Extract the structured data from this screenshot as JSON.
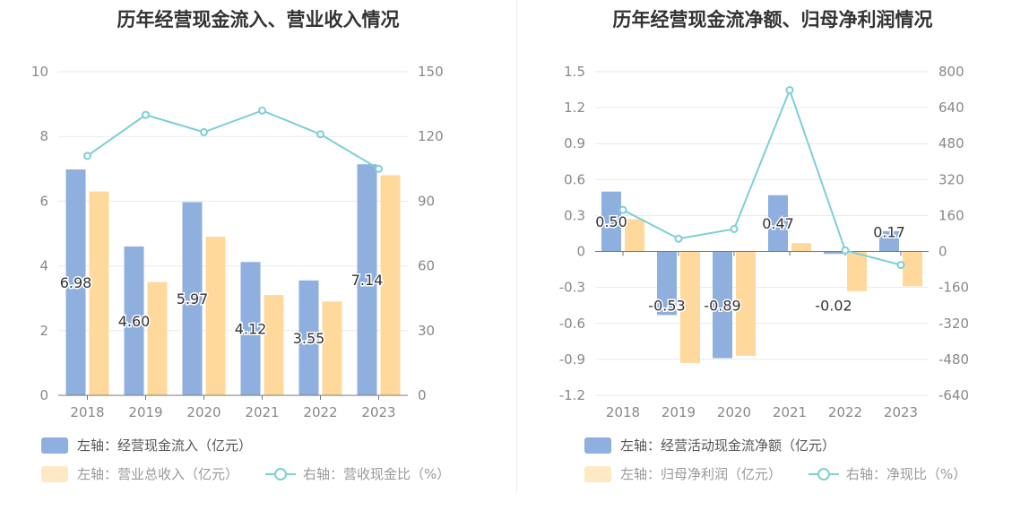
{
  "colors": {
    "bar_blue": "#8fafde",
    "bar_orange": "#ffd89c",
    "line_teal": "#7ecfd6",
    "grid": "#e6e9f2",
    "axis": "#777777",
    "tick_text": "#888888",
    "title": "#333333"
  },
  "legend_icons": [
    "blue-bar-swatch",
    "orange-bar-swatch",
    "teal-line-circle-marker"
  ],
  "chart_data": [
    {
      "type": "bar",
      "title": "历年经营现金流入、营业收入情况",
      "categories": [
        "2018",
        "2019",
        "2020",
        "2021",
        "2022",
        "2023"
      ],
      "y_left": {
        "ylim": [
          0,
          10
        ],
        "ticks": [
          "0",
          "2",
          "4",
          "6",
          "8",
          "10"
        ],
        "tick_values": [
          0,
          2,
          4,
          6,
          8,
          10
        ]
      },
      "y_right": {
        "ylim": [
          0,
          150
        ],
        "ticks": [
          "0",
          "30",
          "60",
          "90",
          "120",
          "150"
        ],
        "tick_values": [
          0,
          30,
          60,
          90,
          120,
          150
        ]
      },
      "grid": true,
      "legend_position": "bottom-left",
      "series": [
        {
          "name": "左轴：经营现金流入（亿元）",
          "kind": "bar",
          "axis": "left",
          "color": "#8fafde",
          "values": [
            6.98,
            4.6,
            5.97,
            4.12,
            3.55,
            7.14
          ],
          "labels": [
            "6.98",
            "4.60",
            "5.97",
            "4.12",
            "3.55",
            "7.14"
          ]
        },
        {
          "name": "左轴：营业总收入（亿元）",
          "kind": "bar",
          "axis": "left",
          "color": "#ffd89c",
          "values": [
            6.3,
            3.5,
            4.9,
            3.1,
            2.9,
            6.8
          ]
        },
        {
          "name": "右轴：营收现金比（%）",
          "kind": "line",
          "axis": "right",
          "color": "#7ecfd6",
          "values": [
            111,
            130,
            122,
            132,
            121,
            105
          ]
        }
      ]
    },
    {
      "type": "bar",
      "title": "历年经营现金流净额、归母净利润情况",
      "categories": [
        "2018",
        "2019",
        "2020",
        "2021",
        "2022",
        "2023"
      ],
      "y_left": {
        "ylim": [
          -1.2,
          1.5
        ],
        "ticks": [
          "-1.2",
          "-0.9",
          "-0.6",
          "-0.3",
          "0",
          "0.3",
          "0.6",
          "0.9",
          "1.2",
          "1.5"
        ],
        "tick_values": [
          -1.2,
          -0.9,
          -0.6,
          -0.3,
          0,
          0.3,
          0.6,
          0.9,
          1.2,
          1.5
        ]
      },
      "y_right": {
        "ylim": [
          -640,
          800
        ],
        "ticks": [
          "-640",
          "-480",
          "-320",
          "-160",
          "0",
          "160",
          "320",
          "480",
          "640",
          "800"
        ],
        "tick_values": [
          -640,
          -480,
          -320,
          -160,
          0,
          160,
          320,
          480,
          640,
          800
        ]
      },
      "grid": true,
      "legend_position": "bottom-left",
      "series": [
        {
          "name": "左轴：经营活动现金流净额（亿元）",
          "kind": "bar",
          "axis": "left",
          "color": "#8fafde",
          "values": [
            0.5,
            -0.53,
            -0.89,
            0.47,
            -0.02,
            0.17
          ],
          "labels": [
            "0.50",
            "-0.53",
            "-0.89",
            "0.47",
            "-0.02",
            "0.17"
          ]
        },
        {
          "name": "左轴：归母净利润（亿元）",
          "kind": "bar",
          "axis": "left",
          "color": "#ffd89c",
          "values": [
            0.27,
            -0.93,
            -0.87,
            0.07,
            -0.33,
            -0.29
          ]
        },
        {
          "name": "右轴：净现比（%）",
          "kind": "line",
          "axis": "right",
          "color": "#7ecfd6",
          "values": [
            185,
            57,
            100,
            718,
            5,
            -60
          ]
        }
      ]
    }
  ]
}
